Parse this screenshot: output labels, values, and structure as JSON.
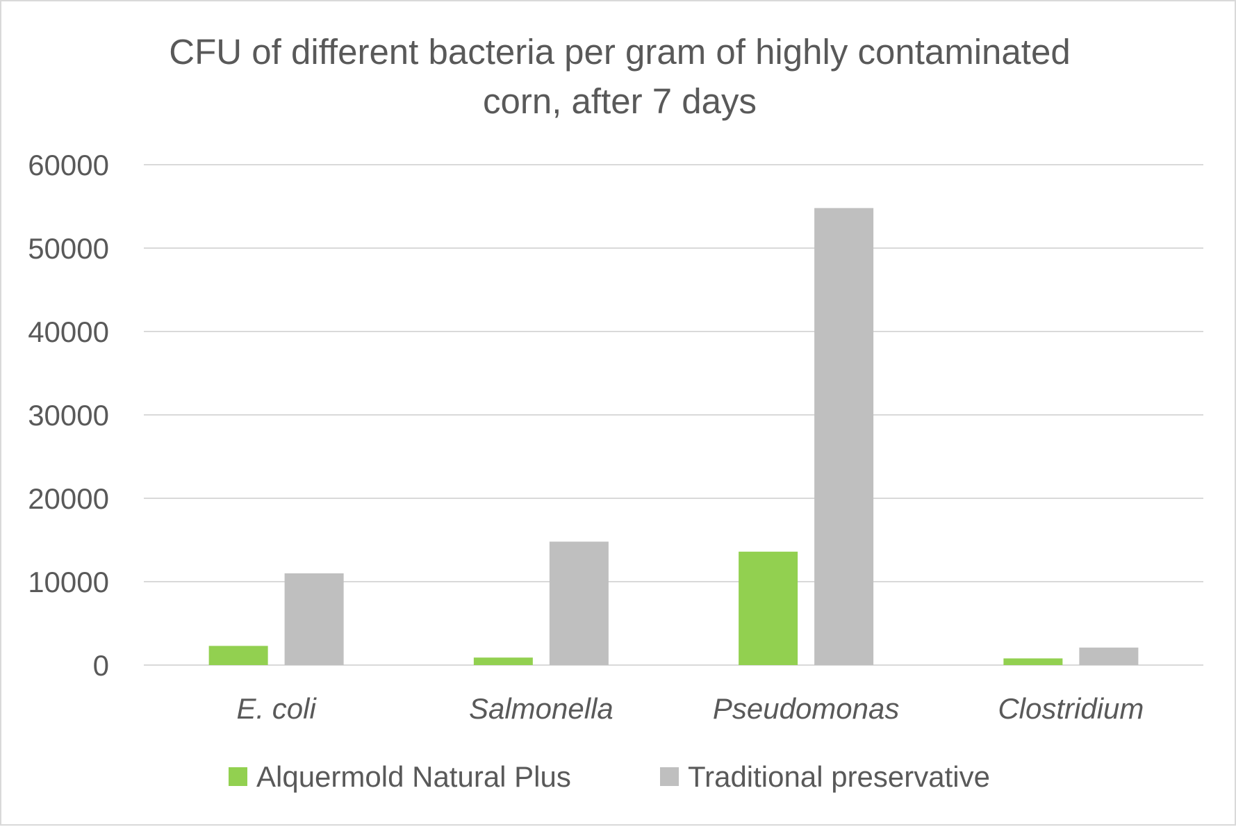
{
  "chart_data": {
    "type": "bar",
    "title_lines": [
      "CFU of different bacteria per gram of highly contaminated",
      "corn, after 7 days"
    ],
    "title": "CFU of different bacteria per gram of highly contaminated corn, after 7 days",
    "xlabel": "",
    "ylabel": "",
    "categories": [
      "E. coli",
      "Salmonella",
      "Pseudomonas",
      "Clostridium"
    ],
    "categories_italic": true,
    "series": [
      {
        "name": "Alquermold Natural Plus",
        "color": "#92d050",
        "values": [
          2300,
          900,
          13600,
          800
        ]
      },
      {
        "name": "Traditional preservative",
        "color": "#bfbfbf",
        "values": [
          11000,
          14800,
          54800,
          2100
        ]
      }
    ],
    "ylim": [
      0,
      60000
    ],
    "yticks": [
      0,
      10000,
      20000,
      30000,
      40000,
      50000,
      60000
    ],
    "ytick_labels": [
      "0",
      "10000",
      "20000",
      "30000",
      "40000",
      "50000",
      "60000"
    ],
    "grid": true,
    "gridline_color": "#d9d9d9",
    "legend_position": "bottom"
  }
}
